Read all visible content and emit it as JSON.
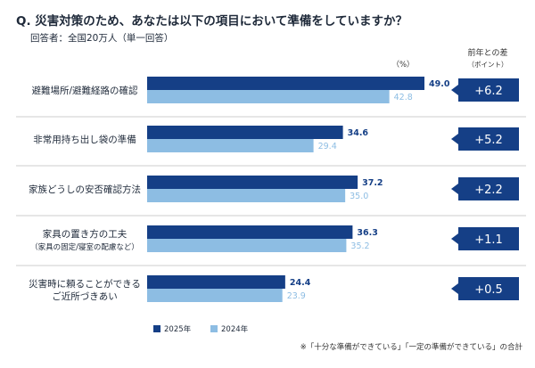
{
  "title": "Q. 災害対策のため、あなたは以下の項目において準備をしていますか？",
  "respondent": "回答者：全国20万人（単一回答）",
  "unit_label": "（%）",
  "diff_header": [
    "前年との差",
    "（ポイント）"
  ],
  "note": "※「十分な準備ができている」「一定の準備ができている」の合計",
  "colors": {
    "series_2025": "#153f86",
    "series_2024": "#8dbde3",
    "diff_box": "#153f86",
    "divider": "#cccccc"
  },
  "chart_data": {
    "type": "bar",
    "orientation": "horizontal",
    "categories": [
      [
        "避難場所/避難経路の確認"
      ],
      [
        "非常用持ち出し袋の準備"
      ],
      [
        "家族どうしの安否確認方法"
      ],
      [
        "家具の置き方の工夫",
        "（家具の固定/寝室の配慮など）"
      ],
      [
        "災害時に頼ることができる",
        "ご近所づきあい"
      ]
    ],
    "series": [
      {
        "name": "2025年",
        "values": [
          49.0,
          34.6,
          37.2,
          36.3,
          24.4
        ]
      },
      {
        "name": "2024年",
        "values": [
          42.8,
          29.4,
          35.0,
          35.2,
          23.9
        ]
      }
    ],
    "differences": [
      "+6.2",
      "+5.2",
      "+2.2",
      "+1.1",
      "+0.5"
    ],
    "xlim": [
      0,
      55
    ],
    "grid": false,
    "legend": "bottom"
  }
}
